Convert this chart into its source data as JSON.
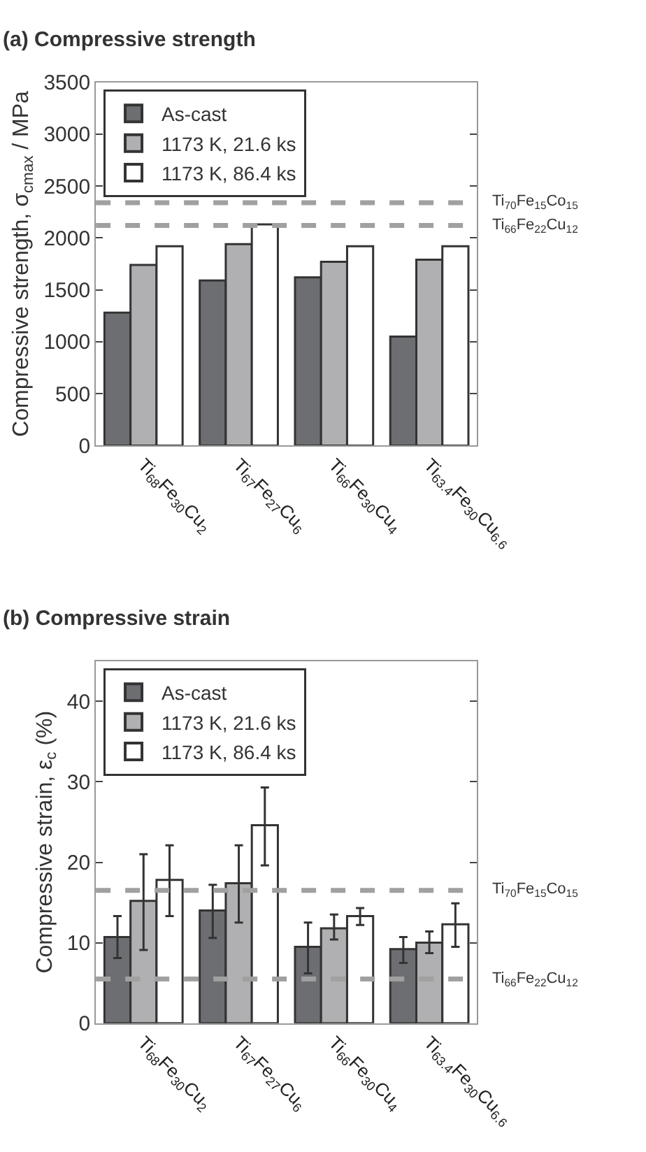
{
  "chart_data": [
    {
      "type": "bar",
      "title": "(a) Compressive strength",
      "ylabel": "Compressive strength, σ$_{cmax}$ / MPa",
      "categories": [
        "Ti$_{68}$Fe$_{30}$Cu$_{2}$",
        "Ti$_{67}$Fe$_{27}$Cu$_{6}$",
        "Ti$_{66}$Fe$_{30}$Cu$_{4}$",
        "Ti$_{63.4}$Fe$_{30}$Cu$_{6.6}$"
      ],
      "series": [
        {
          "name": "As-cast",
          "color": "#6d6e72",
          "values": [
            1280,
            1590,
            1620,
            1050
          ]
        },
        {
          "name": "1173 K, 21.6 ks",
          "color": "#b0b0b2",
          "values": [
            1740,
            1940,
            1770,
            1790
          ]
        },
        {
          "name": "1173 K, 86.4 ks",
          "color": "#ffffff",
          "values": [
            1920,
            2130,
            1920,
            1920
          ]
        }
      ],
      "ylim": [
        0,
        3500
      ],
      "yticks": [
        0,
        500,
        1000,
        1500,
        2000,
        2500,
        3000,
        3500
      ],
      "ref_lines": [
        {
          "axis": "y",
          "value": 2340,
          "label": "Ti$_{70}$Fe$_{15}$Co$_{15}$",
          "color": "#a0a0a0",
          "line_style": "dashed"
        },
        {
          "axis": "y",
          "value": 2120,
          "label": "Ti$_{66}$Fe$_{22}$Cu$_{12}$",
          "color": "#a0a0a0",
          "line_style": "dashed"
        }
      ],
      "legend": "top left"
    },
    {
      "type": "bar",
      "title": "(b) Compressive strain",
      "ylabel": "Compressive strain, ε$_{c}$ (%)",
      "categories": [
        "Ti$_{68}$Fe$_{30}$Cu$_{2}$",
        "Ti$_{67}$Fe$_{27}$Cu$_{6}$",
        "Ti$_{66}$Fe$_{30}$Cu$_{4}$",
        "Ti$_{63.4}$Fe$_{30}$Cu$_{6.6}$"
      ],
      "series": [
        {
          "name": "As-cast",
          "color": "#6d6e72",
          "values": [
            10.7,
            14.0,
            9.5,
            9.2
          ],
          "errors": [
            [
              8.1,
              13.3
            ],
            [
              10.6,
              17.2
            ],
            [
              6.2,
              12.5
            ],
            [
              7.5,
              10.7
            ]
          ]
        },
        {
          "name": "1173 K, 21.6 ks",
          "color": "#b0b0b2",
          "values": [
            15.2,
            17.4,
            11.8,
            10.0
          ],
          "errors": [
            [
              9.1,
              21.0
            ],
            [
              12.5,
              22.1
            ],
            [
              10.4,
              13.5
            ],
            [
              8.7,
              11.4
            ]
          ]
        },
        {
          "name": "1173 K, 86.4 ks",
          "color": "#ffffff",
          "values": [
            17.8,
            24.6,
            13.3,
            12.3
          ],
          "errors": [
            [
              13.3,
              22.1
            ],
            [
              19.6,
              29.3
            ],
            [
              12.2,
              14.3
            ],
            [
              9.5,
              14.9
            ]
          ]
        }
      ],
      "ylim": [
        0,
        45
      ],
      "yticks": [
        0,
        10,
        20,
        30,
        40
      ],
      "ref_lines": [
        {
          "axis": "y",
          "value": 16.5,
          "label": "Ti$_{70}$Fe$_{15}$Co$_{15}$",
          "color": "#a0a0a0",
          "line_style": "dashed"
        },
        {
          "axis": "y",
          "value": 5.5,
          "label": "Ti$_{66}$Fe$_{22}$Cu$_{12}$",
          "color": "#a0a0a0",
          "line_style": "dashed"
        }
      ],
      "legend": "top left"
    }
  ]
}
